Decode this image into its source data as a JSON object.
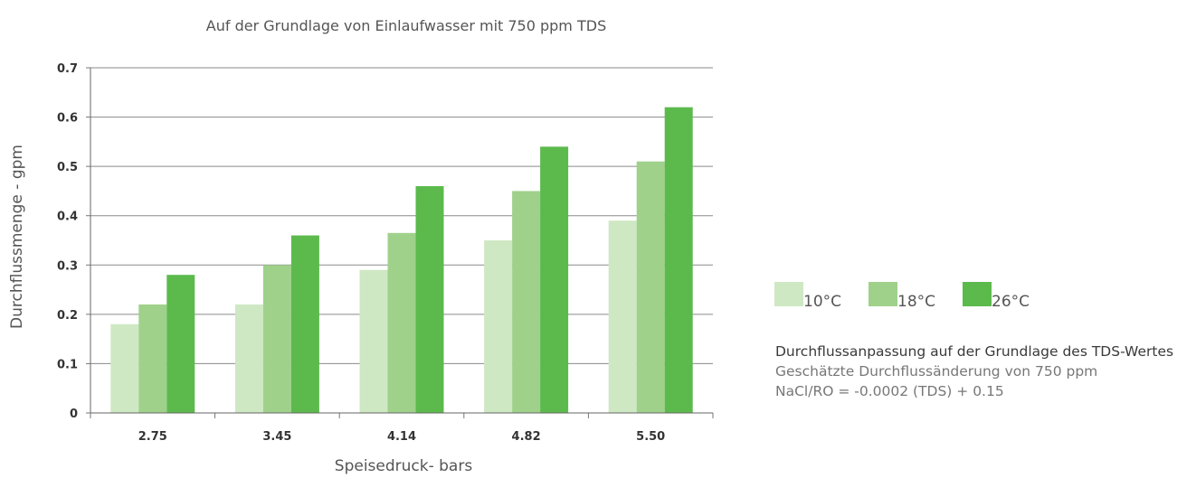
{
  "chart_data": {
    "type": "bar",
    "title": "Auf der Grundlage von Einlaufwasser mit 750 ppm TDS",
    "xlabel": "Speisedruck- bars",
    "ylabel": "Durchflussmenge - gpm",
    "categories": [
      "2.75",
      "3.45",
      "4.14",
      "4.82",
      "5.50"
    ],
    "ylim": [
      0,
      0.7
    ],
    "yticks": [
      "0",
      "0.1",
      "0.2",
      "0.3",
      "0.4",
      "0.5",
      "0.6",
      "0.7"
    ],
    "grid": true,
    "legend_position": "right",
    "series": [
      {
        "name": "10°C",
        "color": "#cfe8c4",
        "values": [
          0.18,
          0.22,
          0.29,
          0.35,
          0.39
        ]
      },
      {
        "name": "18°C",
        "color": "#9fd18b",
        "values": [
          0.22,
          0.3,
          0.365,
          0.45,
          0.51
        ]
      },
      {
        "name": "26°C",
        "color": "#5cba4d",
        "values": [
          0.28,
          0.36,
          0.46,
          0.54,
          0.62
        ]
      }
    ]
  },
  "note": {
    "title": "Durchflussanpassung auf der Grundlage des TDS-Wertes",
    "line1": "Geschätzte Durchflussänderung von 750 ppm",
    "line2": "NaCl/RO = -0.0002 (TDS) + 0.15"
  }
}
